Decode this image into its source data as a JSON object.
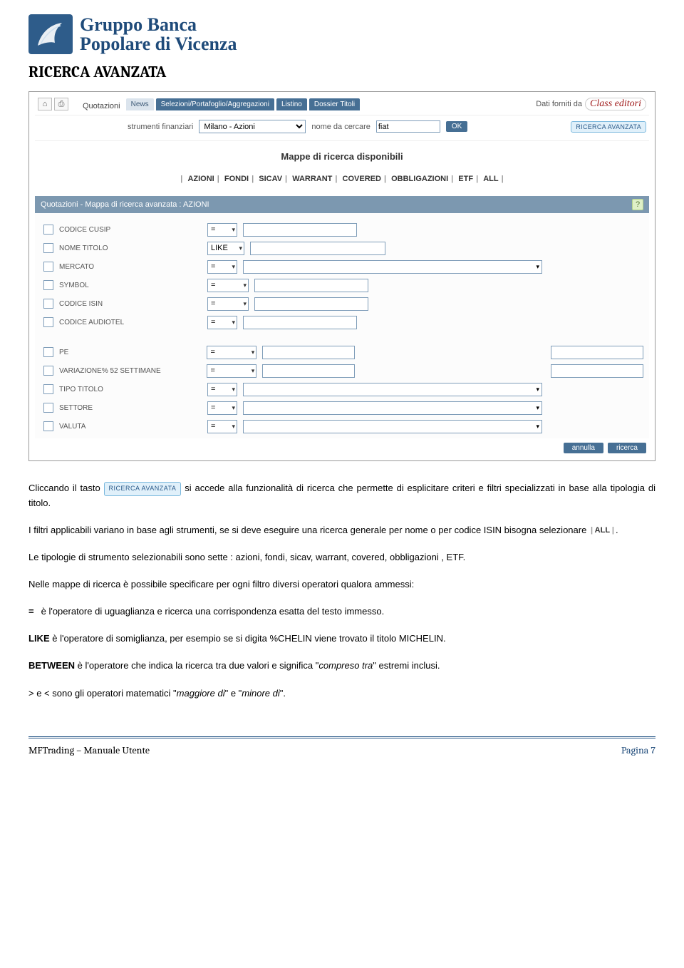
{
  "logo": {
    "line1": "Gruppo Banca",
    "line2": "Popolare di Vicenza"
  },
  "page_title": "RICERCA AVANZATA",
  "screenshot": {
    "top": {
      "quotazioni": "Quotazioni",
      "tabs": [
        "News",
        "Selezioni/Portafoglio/Aggregazioni",
        "Listino",
        "Dossier Titoli"
      ],
      "dati_label": "Dati forniti da",
      "dati_brand": "Class editori"
    },
    "search": {
      "label_strumenti": "strumenti finanziari",
      "sel_strumenti": "Milano - Azioni",
      "label_nome": "nome da cercare",
      "val_nome": "fiat",
      "ok": "OK",
      "avanzata": "RICERCA AVANZATA"
    },
    "mappe_title": "Mappe di ricerca disponibili",
    "map_tabs": [
      "AZIONI",
      "FONDI",
      "SICAV",
      "WARRANT",
      "COVERED",
      "OBBLIGAZIONI",
      "ETF",
      "ALL"
    ],
    "panel_header": "Quotazioni - Mappa di ricerca avanzata : AZIONI",
    "rows_a": [
      {
        "label": "CODICE CUSIP",
        "op": "=",
        "op_w": "op-narrow",
        "txt_w": "txt-w160"
      },
      {
        "label": "NOME TITOLO",
        "op": "LIKE",
        "op_w": "op-like",
        "txt_w": "txt-w180"
      },
      {
        "label": "MERCATO",
        "op": "=",
        "op_w": "op-narrow",
        "txt_w": "txt-w440"
      },
      {
        "label": "SYMBOL",
        "op": "=",
        "op_w": "op-med",
        "txt_w": "txt-w160"
      },
      {
        "label": "CODICE ISIN",
        "op": "=",
        "op_w": "op-med",
        "txt_w": "txt-w160"
      },
      {
        "label": "CODICE AUDIOTEL",
        "op": "=",
        "op_w": "op-narrow",
        "txt_w": "txt-w160"
      }
    ],
    "rows_b": [
      {
        "label": "PE",
        "op": "=",
        "op_w": "op-wide",
        "kind": "two"
      },
      {
        "label": "VARIAZIONE% 52 SETTIMANE",
        "op": "=",
        "op_w": "op-wide",
        "kind": "two"
      },
      {
        "label": "TIPO TITOLO",
        "op": "=",
        "op_w": "op-narrow",
        "kind": "long"
      },
      {
        "label": "SETTORE",
        "op": "=",
        "op_w": "op-narrow",
        "kind": "long"
      },
      {
        "label": "VALUTA",
        "op": "=",
        "op_w": "op-narrow",
        "kind": "long"
      }
    ],
    "buttons": {
      "annulla": "annulla",
      "ricerca": "ricerca"
    }
  },
  "body": {
    "p1_a": "Cliccando il tasto ",
    "p1_btn": "RICERCA AVANZATA",
    "p1_b": " si accede alla funzionalità di ricerca che permette di esplicitare criteri e filtri specializzati in base alla tipologia di titolo.",
    "p2_a": "I filtri applicabili variano in base agli strumenti, se si deve eseguire una ricerca generale per nome o per codice ISIN bisogna selezionare ",
    "p2_all": "ALL",
    "p2_b": ".",
    "p3": "Le tipologie di strumento selezionabili sono sette : azioni, fondi, sicav, warrant, covered, obbligazioni , ETF.",
    "p4": "Nelle mappe di ricerca è possibile specificare per ogni filtro diversi operatori qualora ammessi:",
    "op_eq": "=",
    "op_eq_txt": "  è l'operatore di uguaglianza e ricerca una corrispondenza esatta del testo immesso.",
    "op_like": "LIKE",
    "op_like_txt": "  è l'operatore di somiglianza, per esempio se si digita %CHELIN viene trovato il titolo MICHELIN.",
    "op_between": "BETWEEN",
    "op_between_txt_a": "   è l'operatore che indica la ricerca tra due valori e significa \"",
    "op_between_em": "compreso tra",
    "op_between_txt_b": "\" estremi inclusi.",
    "op_gtlt_a": "> e <  sono gli operatori matematici \"",
    "op_gtlt_em1": "maggiore di",
    "op_gtlt_mid": "\" e \"",
    "op_gtlt_em2": "minore di",
    "op_gtlt_b": "\"."
  },
  "footer": {
    "left": "MFTrading – Manuale Utente",
    "right": "Pagina 7"
  },
  "colors": {
    "brand_blue": "#2e5c8a",
    "nav_blue": "#466f94",
    "panel_blue": "#7c98b0",
    "btn_light_bg": "#e0f0fa",
    "btn_light_border": "#7ab8dd"
  }
}
